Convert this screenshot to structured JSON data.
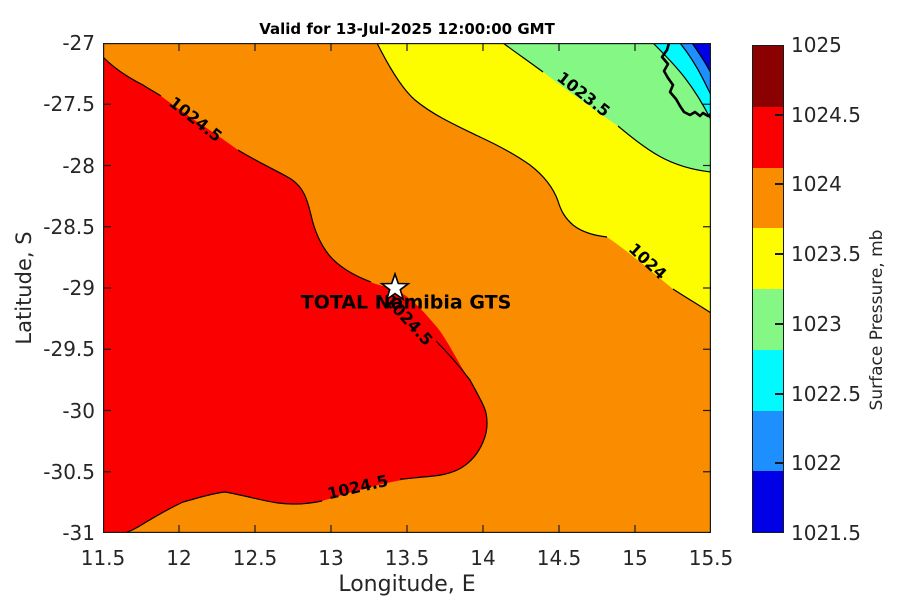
{
  "title": "Valid for 13-Jul-2025 12:00:00 GMT",
  "axes": {
    "xlabel": "Longitude, E",
    "ylabel": "Latitude, S",
    "xtick_labels": [
      "11.5",
      "12",
      "12.5",
      "13",
      "13.5",
      "14",
      "14.5",
      "15",
      "15.5"
    ],
    "ytick_labels": [
      "-27",
      "-27.5",
      "-28",
      "-28.5",
      "-29",
      "-29.5",
      "-30",
      "-30.5",
      "-31"
    ]
  },
  "colorbar": {
    "label": "Surface Pressure, mb",
    "tick_labels": [
      "1025",
      "1024.5",
      "1024",
      "1023.5",
      "1023",
      "1022.5",
      "1022",
      "1021.5"
    ],
    "band_colors_top_to_bottom": [
      "#8B0000",
      "#FB0000",
      "#FA8C00",
      "#FDFD00",
      "#85F784",
      "#00FAFF",
      "#1E8FFF",
      "#0000E6"
    ]
  },
  "station": {
    "label": "TOTAL Namibia GTS",
    "marker": "star",
    "lon": 13.4,
    "lat": -29.0
  },
  "chart_data": {
    "type": "filled-contour-map",
    "title": "Valid for 13-Jul-2025 12:00:00 GMT",
    "xlabel": "Longitude, E",
    "ylabel": "Latitude, S",
    "colorbar_label": "Surface Pressure, mb",
    "xlim": [
      11.5,
      15.5
    ],
    "ylim": [
      -31,
      -27
    ],
    "colorbar_range_mb": [
      1021.5,
      1025
    ],
    "contour_interval_mb": 0.5,
    "levels_mb": [
      1021.5,
      1022,
      1022.5,
      1023,
      1023.5,
      1024,
      1024.5,
      1025
    ],
    "bands": [
      {
        "range_mb": "1024.5-1025",
        "color": "#8B0000",
        "where": "colorbar only"
      },
      {
        "range_mb": "1024-1024.5",
        "color": "#FB0000",
        "where": "large high-pressure lobe over southwest half"
      },
      {
        "range_mb": "1023.5-1024",
        "color": "#FA8C00",
        "where": "broad background band across map"
      },
      {
        "range_mb": "1023-1023.5",
        "color": "#FDFD00",
        "where": "diagonal band toward northeast"
      },
      {
        "range_mb": "1022.5-1023",
        "color": "#85F784",
        "where": "northeast of yellow band"
      },
      {
        "range_mb": "1022-1022.5",
        "color": "#00FAFF",
        "where": "near northeast corner, coastline crosses it"
      },
      {
        "range_mb": "1021.5-1022",
        "color": "#1E8FFF",
        "where": "northeast corner"
      },
      {
        "range_mb": "below 1021.5",
        "color": "#0000E6",
        "where": "extreme northeast corner"
      }
    ],
    "contour_labels": [
      {
        "text": "1024.5",
        "lon": 12.11,
        "lat": -27.63
      },
      {
        "text": "1024.5",
        "lon": 13.51,
        "lat": -29.24
      },
      {
        "text": "1024.5",
        "lon": 13.18,
        "lat": -30.63
      },
      {
        "text": "1023.5",
        "lon": 14.66,
        "lat": -27.42
      },
      {
        "text": "1024",
        "lon": 15.08,
        "lat": -28.79
      }
    ],
    "station_marker": {
      "label": "TOTAL Namibia GTS",
      "symbol": "white star",
      "lon": 13.4,
      "lat": -29.0
    },
    "coastline": "thick black jagged line in the northeast corner from ~14.9E at -27S to the right edge near -27.6S"
  }
}
